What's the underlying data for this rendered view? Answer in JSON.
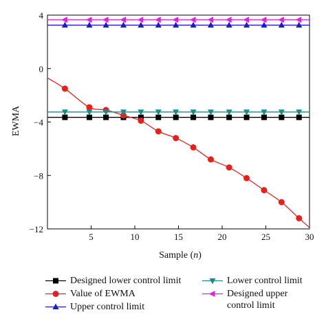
{
  "chart_data": {
    "type": "line",
    "xlabel": "Sample",
    "xlabel_var": "n",
    "ylabel": "EWMA",
    "xlim": [
      0,
      30
    ],
    "ylim": [
      -12,
      4
    ],
    "x_ticks": [
      5,
      10,
      15,
      20,
      25,
      30
    ],
    "y_ticks": [
      4,
      0,
      -4,
      -8,
      -12
    ],
    "y_tick_labels": [
      "4",
      "0",
      "−4",
      "−8",
      "−12"
    ],
    "series": [
      {
        "name": "Designed lower control limit",
        "color": "#000000",
        "marker": "square",
        "x": [
          0,
          2,
          4.8,
          6.7,
          8.7,
          10.7,
          12.7,
          14.7,
          16.7,
          18.7,
          20.8,
          22.8,
          24.8,
          26.8,
          28.8,
          30
        ],
        "y": [
          -3.65,
          -3.65,
          -3.65,
          -3.65,
          -3.65,
          -3.65,
          -3.65,
          -3.65,
          -3.65,
          -3.65,
          -3.65,
          -3.65,
          -3.65,
          -3.65,
          -3.65,
          -3.65
        ]
      },
      {
        "name": "Value of EWMA",
        "color": "#e8201c",
        "marker": "circle",
        "x": [
          0,
          2,
          4.8,
          6.7,
          8.7,
          10.7,
          12.7,
          14.7,
          16.7,
          18.7,
          20.8,
          22.8,
          24.8,
          26.8,
          28.8,
          30
        ],
        "y": [
          -0.7,
          -1.5,
          -2.9,
          -3.1,
          -3.5,
          -3.9,
          -4.7,
          -5.2,
          -5.9,
          -6.8,
          -7.4,
          -8.2,
          -9.1,
          -10.0,
          -11.2,
          -11.9
        ]
      },
      {
        "name": "Upper control limit",
        "color": "#1c1ccc",
        "marker": "triangle-up",
        "x": [
          0,
          2,
          4.8,
          6.7,
          8.7,
          10.7,
          12.7,
          14.7,
          16.7,
          18.7,
          20.8,
          22.8,
          24.8,
          26.8,
          28.8,
          30
        ],
        "y": [
          3.25,
          3.25,
          3.25,
          3.25,
          3.25,
          3.25,
          3.25,
          3.25,
          3.25,
          3.25,
          3.25,
          3.25,
          3.25,
          3.25,
          3.25,
          3.25
        ]
      },
      {
        "name": "Lower control limit",
        "color": "#1a8a8a",
        "marker": "triangle-down",
        "x": [
          0,
          2,
          4.8,
          6.7,
          8.7,
          10.7,
          12.7,
          14.7,
          16.7,
          18.7,
          20.8,
          22.8,
          24.8,
          26.8,
          28.8,
          30
        ],
        "y": [
          -3.25,
          -3.25,
          -3.25,
          -3.25,
          -3.25,
          -3.25,
          -3.25,
          -3.25,
          -3.25,
          -3.25,
          -3.25,
          -3.25,
          -3.25,
          -3.25,
          -3.25,
          -3.25
        ]
      },
      {
        "name": "Designed upper\ncontrol limit",
        "color": "#e020e0",
        "marker": "triangle-left",
        "x": [
          0,
          2,
          4.8,
          6.7,
          8.7,
          10.7,
          12.7,
          14.7,
          16.7,
          18.7,
          20.8,
          22.8,
          24.8,
          26.8,
          28.8,
          30
        ],
        "y": [
          3.65,
          3.65,
          3.65,
          3.65,
          3.65,
          3.65,
          3.65,
          3.65,
          3.65,
          3.65,
          3.65,
          3.65,
          3.65,
          3.65,
          3.65,
          3.65
        ]
      }
    ],
    "legend_position": "bottom"
  }
}
